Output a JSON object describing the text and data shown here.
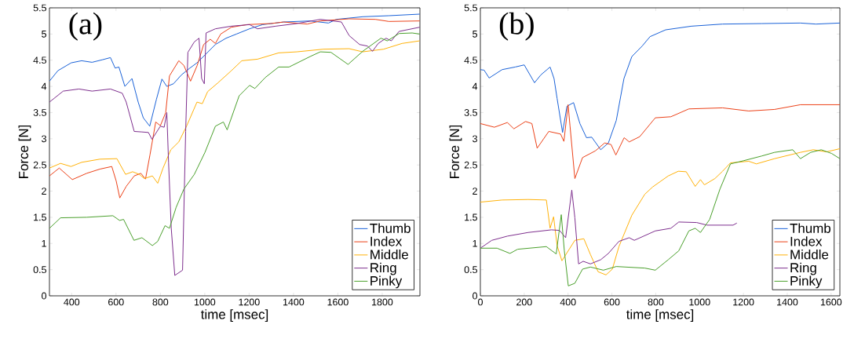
{
  "chart_data": [
    {
      "type": "line",
      "xlabel": "time [msec]",
      "ylabel": "Force [N]",
      "annotations": [
        "(a)"
      ],
      "legend": "bottom right",
      "xlim": [
        300,
        1970
      ],
      "ylim": [
        0,
        5.5
      ],
      "xticks": [
        400,
        600,
        800,
        1000,
        1200,
        1400,
        1600,
        1800
      ],
      "yticks": [
        0,
        0.5,
        1,
        1.5,
        2,
        2.5,
        3,
        3.5,
        4,
        4.5,
        5,
        5.5
      ],
      "series": [
        {
          "name": "Thumb",
          "color": "#1a62d8",
          "x": [
            300,
            338,
            398,
            445,
            492,
            540,
            575,
            596,
            613,
            640,
            672,
            700,
            723,
            752,
            782,
            807,
            829,
            859,
            895,
            930,
            965,
            1001,
            1048,
            1096,
            1143,
            1202,
            1261,
            1356,
            1475,
            1558,
            1593,
            1712,
            1830,
            1969
          ],
          "values": [
            4.1,
            4.3,
            4.45,
            4.49,
            4.46,
            4.51,
            4.55,
            4.35,
            4.37,
            4.0,
            4.15,
            3.7,
            3.4,
            3.24,
            3.75,
            4.14,
            4.0,
            4.05,
            4.22,
            4.34,
            4.45,
            4.6,
            4.8,
            4.92,
            5.0,
            5.1,
            5.18,
            5.23,
            5.25,
            5.21,
            5.28,
            5.33,
            5.35,
            5.38
          ]
        },
        {
          "name": "Index",
          "color": "#ec4219",
          "x": [
            300,
            344,
            403,
            468,
            527,
            581,
            601,
            617,
            646,
            682,
            712,
            733,
            753,
            779,
            800,
            824,
            841,
            883,
            906,
            936,
            966,
            995,
            1025,
            1048,
            1072,
            1120,
            1191,
            1297,
            1356,
            1462,
            1521,
            1651,
            1769,
            1830,
            1969
          ],
          "values": [
            2.29,
            2.44,
            2.22,
            2.34,
            2.42,
            2.47,
            2.19,
            1.87,
            2.09,
            2.29,
            2.34,
            2.23,
            2.69,
            3.32,
            3.25,
            3.5,
            4.2,
            4.49,
            4.4,
            4.1,
            4.4,
            4.8,
            4.9,
            4.82,
            5.0,
            5.13,
            5.18,
            5.2,
            5.23,
            5.19,
            5.25,
            5.29,
            5.28,
            5.24,
            5.25
          ]
        },
        {
          "name": "Middle",
          "color": "#ffb20a",
          "x": [
            300,
            350,
            397,
            445,
            527,
            604,
            643,
            675,
            705,
            728,
            764,
            788,
            812,
            847,
            883,
            918,
            965,
            989,
            1013,
            1060,
            1120,
            1167,
            1238,
            1333,
            1415,
            1534,
            1651,
            1712,
            1806,
            1889,
            1969
          ],
          "values": [
            2.44,
            2.53,
            2.47,
            2.55,
            2.61,
            2.62,
            2.32,
            2.37,
            2.32,
            2.24,
            2.29,
            2.15,
            2.44,
            2.79,
            2.94,
            3.24,
            3.7,
            3.67,
            3.9,
            4.07,
            4.3,
            4.49,
            4.52,
            4.64,
            4.66,
            4.71,
            4.72,
            4.66,
            4.71,
            4.82,
            4.87
          ]
        },
        {
          "name": "Ring",
          "color": "#7e2f8e",
          "x": [
            300,
            362,
            433,
            492,
            575,
            628,
            646,
            682,
            717,
            746,
            762,
            800,
            817,
            829,
            837,
            849,
            865,
            900,
            914,
            924,
            953,
            974,
            986,
            998,
            1006,
            1048,
            1120,
            1202,
            1238,
            1320,
            1415,
            1521,
            1616,
            1651,
            1698,
            1734,
            1756,
            1782,
            1817,
            1841,
            1876,
            1969
          ],
          "values": [
            3.7,
            3.91,
            3.95,
            3.91,
            3.95,
            3.87,
            3.7,
            3.14,
            3.13,
            3.12,
            2.99,
            3.24,
            3.22,
            3.5,
            2.54,
            1.29,
            0.39,
            0.49,
            3.14,
            4.65,
            4.85,
            4.92,
            4.15,
            4.05,
            5.02,
            5.1,
            5.15,
            5.18,
            5.1,
            5.15,
            5.2,
            5.28,
            5.23,
            4.97,
            4.8,
            4.77,
            4.67,
            4.82,
            4.92,
            4.87,
            5.05,
            5.13
          ]
        },
        {
          "name": "Pinky",
          "color": "#4aa02c",
          "x": [
            300,
            350,
            468,
            586,
            616,
            634,
            681,
            717,
            764,
            788,
            821,
            841,
            871,
            906,
            953,
            1001,
            1048,
            1084,
            1101,
            1155,
            1202,
            1226,
            1273,
            1333,
            1380,
            1475,
            1521,
            1569,
            1646,
            1712,
            1794,
            1823,
            1876,
            1935,
            1969
          ],
          "values": [
            1.29,
            1.49,
            1.5,
            1.53,
            1.44,
            1.46,
            1.06,
            1.11,
            0.96,
            1.04,
            1.34,
            1.29,
            1.69,
            2.04,
            2.32,
            2.74,
            3.24,
            3.32,
            3.17,
            3.82,
            4.02,
            3.96,
            4.17,
            4.37,
            4.37,
            4.57,
            4.66,
            4.65,
            4.42,
            4.67,
            4.92,
            4.87,
            5.01,
            5.02,
            5.0
          ]
        }
      ]
    },
    {
      "type": "line",
      "xlabel": "time [msec]",
      "ylabel": "Force [N]",
      "annotations": [
        "(b)"
      ],
      "legend": "bottom right",
      "xlim": [
        0,
        1640
      ],
      "ylim": [
        0,
        5.5
      ],
      "xticks": [
        0,
        200,
        400,
        600,
        800,
        1000,
        1200,
        1400,
        {
          "value": 1600,
          "label": "1600"
        }
      ],
      "yticks": [
        0,
        0.5,
        1,
        1.5,
        2,
        2.5,
        3,
        3.5,
        4,
        4.5,
        5,
        5.5
      ],
      "series": [
        {
          "name": "Thumb",
          "color": "#1a62d8",
          "x": [
            0,
            17,
            40,
            99,
            159,
            200,
            247,
            276,
            318,
            336,
            350,
            375,
            395,
            425,
            454,
            484,
            508,
            549,
            584,
            620,
            655,
            691,
            738,
            774,
            845,
            963,
            1105,
            1283,
            1460,
            1531,
            1640
          ],
          "values": [
            4.32,
            4.31,
            4.16,
            4.32,
            4.37,
            4.41,
            4.07,
            4.22,
            4.37,
            4.15,
            3.77,
            3.12,
            3.62,
            3.69,
            3.29,
            3.02,
            3.03,
            2.79,
            2.92,
            3.35,
            4.15,
            4.57,
            4.77,
            4.95,
            5.08,
            5.15,
            5.19,
            5.2,
            5.21,
            5.19,
            5.21
          ]
        },
        {
          "name": "Index",
          "color": "#ec4219",
          "x": [
            0,
            64,
            123,
            153,
            206,
            235,
            259,
            312,
            366,
            381,
            400,
            409,
            431,
            466,
            525,
            567,
            596,
            618,
            656,
            679,
            727,
            798,
            869,
            951,
            1105,
            1224,
            1342,
            1460,
            1640
          ],
          "values": [
            3.29,
            3.22,
            3.31,
            3.19,
            3.33,
            3.29,
            2.82,
            3.14,
            3.09,
            2.95,
            3.65,
            3.24,
            2.24,
            2.64,
            2.77,
            2.92,
            2.89,
            2.69,
            3.02,
            2.94,
            3.04,
            3.4,
            3.42,
            3.57,
            3.59,
            3.53,
            3.56,
            3.65,
            3.65
          ]
        },
        {
          "name": "Middle",
          "color": "#ffb20a",
          "x": [
            0,
            99,
            218,
            301,
            318,
            334,
            350,
            372,
            431,
            472,
            502,
            537,
            573,
            602,
            632,
            691,
            750,
            786,
            857,
            903,
            939,
            980,
            1004,
            1022,
            1070,
            1105,
            1141,
            1224,
            1259,
            1342,
            1460,
            1519,
            1579,
            1640
          ],
          "values": [
            1.79,
            1.83,
            1.84,
            1.83,
            1.29,
            1.51,
            0.96,
            0.67,
            1.06,
            1.09,
            0.79,
            0.46,
            0.4,
            0.51,
            0.94,
            1.54,
            1.94,
            2.08,
            2.29,
            2.38,
            2.37,
            2.09,
            2.22,
            2.12,
            2.24,
            2.38,
            2.54,
            2.57,
            2.52,
            2.62,
            2.74,
            2.79,
            2.75,
            2.81
          ]
        },
        {
          "name": "Ring",
          "color": "#7e2f8e",
          "x": [
            0,
            52,
            123,
            218,
            324,
            361,
            389,
            417,
            431,
            448,
            469,
            502,
            549,
            584,
            632,
            679,
            702,
            798,
            869,
            905,
            987,
            1034,
            1153,
            1170
          ],
          "values": [
            0.91,
            1.06,
            1.14,
            1.21,
            1.26,
            1.25,
            1.11,
            2.02,
            1.49,
            0.61,
            0.66,
            0.61,
            0.69,
            0.81,
            1.04,
            1.11,
            1.06,
            1.24,
            1.29,
            1.41,
            1.4,
            1.35,
            1.35,
            1.39
          ]
        },
        {
          "name": "Pinky",
          "color": "#4aa02c",
          "x": [
            0,
            76,
            135,
            170,
            301,
            346,
            369,
            383,
            401,
            431,
            466,
            502,
            561,
            620,
            750,
            798,
            857,
            905,
            951,
            980,
            1004,
            1046,
            1093,
            1141,
            1200,
            1283,
            1342,
            1425,
            1460,
            1507,
            1555,
            1602,
            1640
          ],
          "values": [
            0.91,
            0.91,
            0.81,
            0.89,
            0.94,
            0.8,
            1.55,
            0.86,
            0.19,
            0.24,
            0.51,
            0.55,
            0.49,
            0.56,
            0.53,
            0.49,
            0.69,
            0.86,
            1.24,
            1.29,
            1.21,
            1.46,
            2.04,
            2.52,
            2.58,
            2.67,
            2.74,
            2.79,
            2.62,
            2.74,
            2.79,
            2.72,
            2.62
          ]
        }
      ]
    }
  ]
}
